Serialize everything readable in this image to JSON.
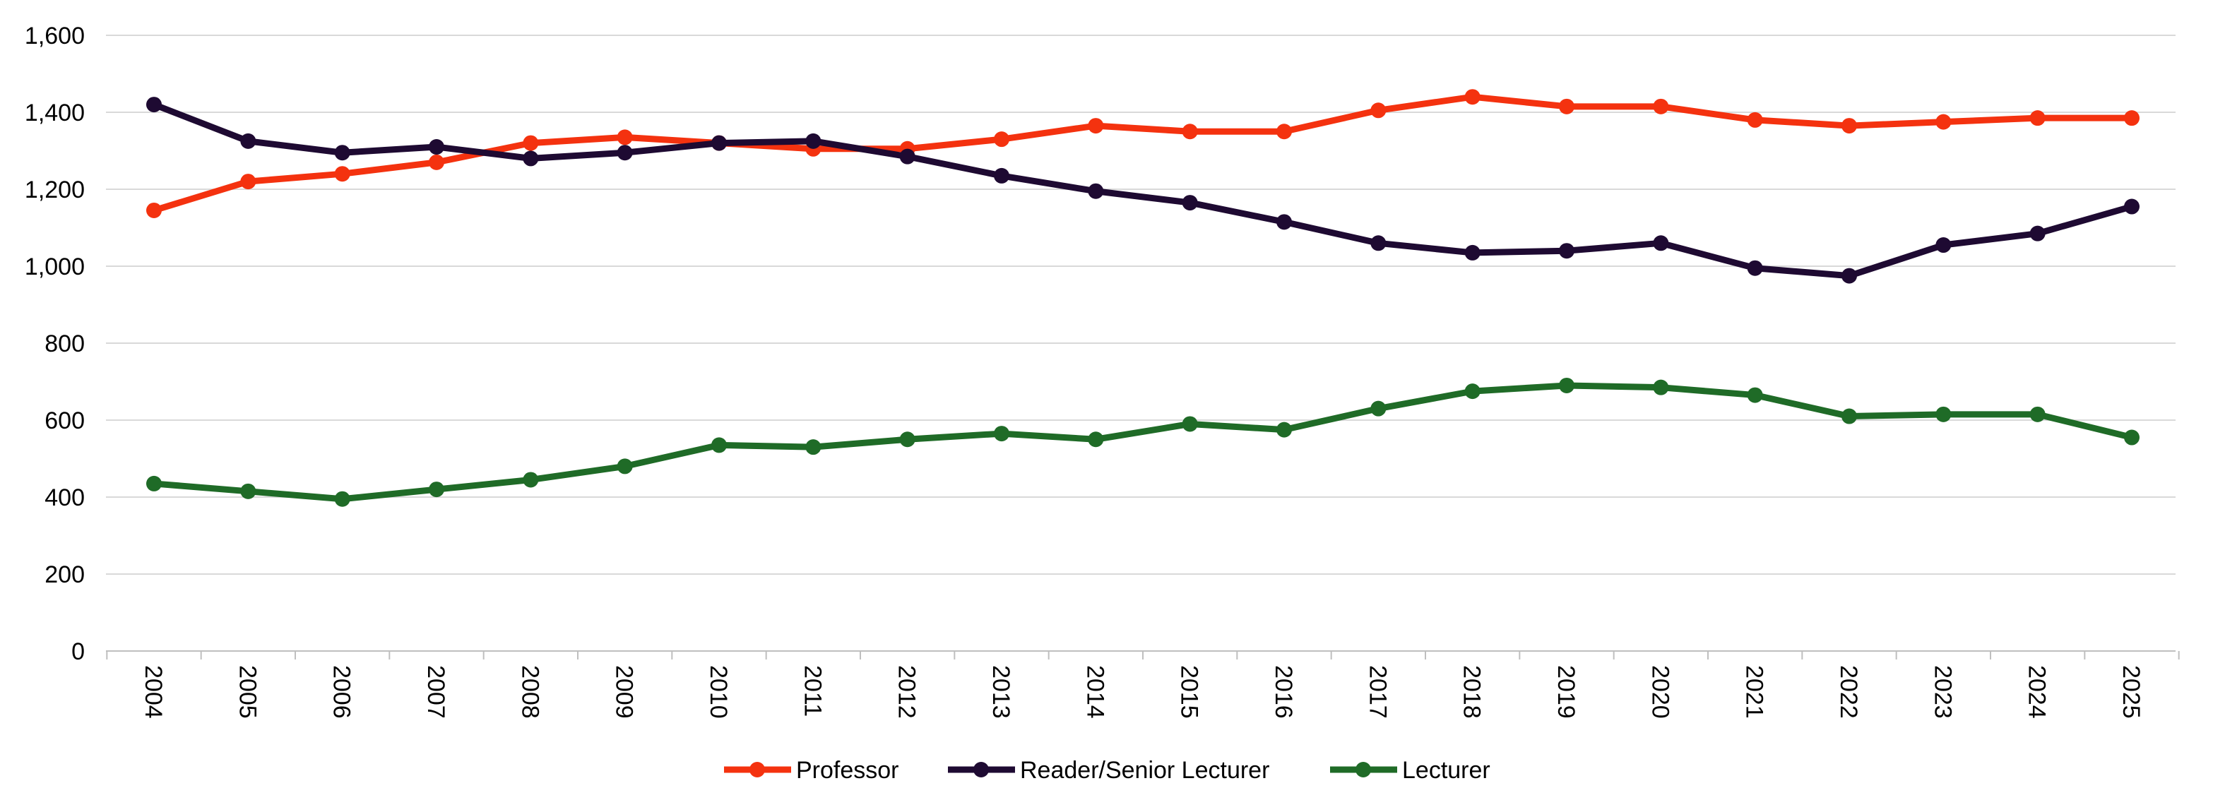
{
  "chart_data": {
    "type": "line",
    "title": "",
    "xlabel": "",
    "ylabel": "",
    "ylim": [
      0,
      1600
    ],
    "yticks": [
      0,
      200,
      400,
      600,
      800,
      1000,
      1200,
      1400,
      1600
    ],
    "ytick_labels": [
      "0",
      "200",
      "400",
      "600",
      "800",
      "1,000",
      "1,200",
      "1,400",
      "1,600"
    ],
    "grid": "horizontal",
    "legend_position": "bottom",
    "categories": [
      "2004",
      "2005",
      "2006",
      "2007",
      "2008",
      "2009",
      "2010",
      "2011",
      "2012",
      "2013",
      "2014",
      "2015",
      "2016",
      "2017",
      "2018",
      "2019",
      "2020",
      "2021",
      "2022",
      "2023",
      "2024",
      "2025"
    ],
    "series": [
      {
        "name": "Professor",
        "color": "#f4320f",
        "values": [
          1145,
          1220,
          1240,
          1270,
          1320,
          1335,
          1320,
          1305,
          1305,
          1330,
          1365,
          1350,
          1350,
          1405,
          1440,
          1415,
          1415,
          1380,
          1365,
          1375,
          1385,
          1385
        ]
      },
      {
        "name": "Reader/Senior Lecturer",
        "color": "#1e0a32",
        "values": [
          1420,
          1325,
          1295,
          1310,
          1280,
          1295,
          1320,
          1325,
          1285,
          1235,
          1195,
          1165,
          1115,
          1060,
          1035,
          1040,
          1060,
          995,
          975,
          1055,
          1085,
          1155
        ]
      },
      {
        "name": "Lecturer",
        "color": "#1f6b27",
        "values": [
          435,
          415,
          395,
          420,
          445,
          480,
          535,
          530,
          550,
          565,
          550,
          590,
          575,
          630,
          675,
          690,
          685,
          665,
          610,
          615,
          615,
          555
        ]
      }
    ]
  }
}
